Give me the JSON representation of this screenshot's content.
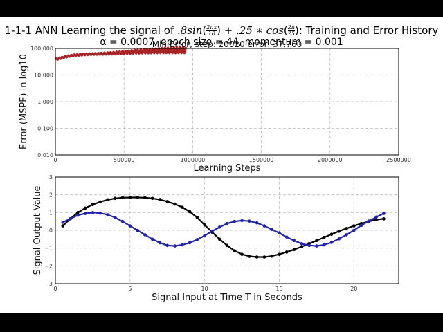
{
  "figure": {
    "title_prefix": "1-1-1 ANN Learning the signal of ",
    "title_formula": ".8sin(2πx/10) + .25*cos(2π/25)",
    "title_suffix": ": Training and Error History",
    "subtitle": "α = 0.0007, epoch size = 44, momentum = 0.001"
  },
  "chart_data": [
    {
      "type": "line",
      "title": "Min Error, step: 20020 error: 37.760",
      "xlabel": "Learning Steps",
      "ylabel": "Error (MSPE) in log10",
      "xlim": [
        0,
        2500000
      ],
      "ylim": [
        0.01,
        100
      ],
      "yscale": "log",
      "grid": true,
      "xticks": [
        "0",
        "500000",
        "1000000",
        "1500000",
        "2000000",
        "2500000"
      ],
      "yticks": [
        "0.010",
        "0.100",
        "1.000",
        "10.000",
        "100.000"
      ],
      "series": [
        {
          "name": "error",
          "color": "#b22222",
          "description": "oscillating error history rising from ~38 to ~70-100 between steps 0 and ~950000",
          "x": [
            0,
            50000,
            100000,
            150000,
            200000,
            250000,
            300000,
            400000,
            500000,
            600000,
            700000,
            800000,
            900000,
            950000
          ],
          "values": [
            38,
            45,
            52,
            56,
            59,
            61,
            62,
            65,
            70,
            76,
            80,
            84,
            86,
            88
          ]
        }
      ]
    },
    {
      "type": "line",
      "title": "",
      "xlabel": "Signal Input at Time T in Seconds",
      "ylabel": "Signal Output Value",
      "xlim": [
        0,
        23
      ],
      "ylim": [
        -3,
        3
      ],
      "grid": true,
      "xticks": [
        "0",
        "5",
        "10",
        "15",
        "20"
      ],
      "yticks": [
        "−3",
        "−2",
        "−1",
        "0",
        "1",
        "2",
        "3"
      ],
      "x": [
        0.5,
        1,
        1.5,
        2,
        2.5,
        3,
        3.5,
        4,
        4.5,
        5,
        5.5,
        6,
        6.5,
        7,
        7.5,
        8,
        8.5,
        9,
        9.5,
        10,
        10.5,
        11,
        11.5,
        12,
        12.5,
        13,
        13.5,
        14,
        14.5,
        15,
        15.5,
        16,
        16.5,
        17,
        17.5,
        18,
        18.5,
        19,
        19.5,
        20,
        20.5,
        21,
        21.5,
        22
      ],
      "series": [
        {
          "name": "target",
          "color": "#000000",
          "values": [
            0.25,
            0.65,
            1.0,
            1.25,
            1.45,
            1.6,
            1.72,
            1.8,
            1.84,
            1.85,
            1.85,
            1.84,
            1.8,
            1.73,
            1.62,
            1.48,
            1.3,
            1.05,
            0.72,
            0.3,
            -0.1,
            -0.5,
            -0.85,
            -1.15,
            -1.35,
            -1.46,
            -1.5,
            -1.5,
            -1.45,
            -1.35,
            -1.22,
            -1.08,
            -0.92,
            -0.75,
            -0.58,
            -0.4,
            -0.22,
            -0.05,
            0.1,
            0.25,
            0.38,
            0.5,
            0.6,
            0.65
          ]
        },
        {
          "name": "network output",
          "color": "#2222aa",
          "values": [
            0.45,
            0.65,
            0.85,
            0.95,
            1.0,
            0.97,
            0.88,
            0.72,
            0.5,
            0.25,
            0.0,
            -0.25,
            -0.5,
            -0.7,
            -0.85,
            -0.88,
            -0.82,
            -0.7,
            -0.52,
            -0.3,
            -0.05,
            0.18,
            0.38,
            0.5,
            0.55,
            0.52,
            0.42,
            0.25,
            0.05,
            -0.15,
            -0.38,
            -0.58,
            -0.75,
            -0.85,
            -0.88,
            -0.82,
            -0.68,
            -0.48,
            -0.25,
            0.0,
            0.28,
            0.52,
            0.75,
            0.95
          ]
        }
      ]
    }
  ]
}
